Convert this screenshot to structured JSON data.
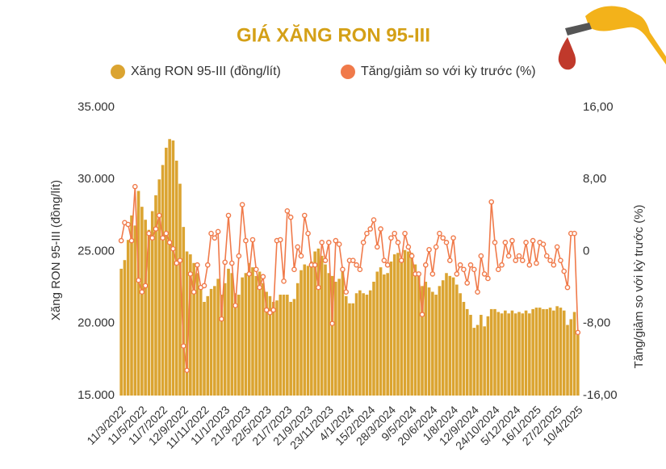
{
  "chart_data": {
    "type": "bar-line",
    "title": "GIÁ XĂNG RON 95-III",
    "y_label": "Xăng RON 95-III (đồng/lít)",
    "y2_label": "Tăng/giảm so với kỳ trước (%)",
    "categories": [
      "11/3/2022",
      null,
      null,
      null,
      null,
      null,
      "11/5/2022",
      null,
      null,
      null,
      null,
      null,
      "11/7/2022",
      null,
      null,
      null,
      null,
      null,
      "12/9/2022",
      null,
      null,
      null,
      null,
      null,
      "11/11/2022",
      null,
      null,
      null,
      null,
      null,
      "11/1/2023",
      null,
      null,
      null,
      null,
      null,
      "21/3/2023",
      null,
      null,
      null,
      null,
      null,
      "22/5/2023",
      null,
      null,
      null,
      null,
      null,
      "21/7/2023",
      null,
      null,
      null,
      null,
      null,
      "21/9/2023",
      null,
      null,
      null,
      null,
      null,
      "23/11/2023",
      null,
      null,
      null,
      null,
      null,
      "4/1/2024",
      null,
      null,
      null,
      null,
      null,
      "15/2/2024",
      null,
      null,
      null,
      null,
      null,
      "28/3/2024",
      null,
      null,
      null,
      null,
      null,
      "9/5/2024",
      null,
      null,
      null,
      null,
      null,
      "20/6/2024",
      null,
      null,
      null,
      null,
      null,
      "1/8/2024",
      null,
      null,
      null,
      null,
      null,
      "12/9/2024",
      null,
      null,
      null,
      null,
      null,
      "24/10/2024",
      null,
      null,
      null,
      null,
      null,
      "5/12/2024",
      null,
      null,
      null,
      null,
      null,
      "16/1/2025",
      null,
      null,
      null,
      null,
      null,
      "27/2/2025",
      null,
      null,
      null,
      null,
      null,
      "10/4/2025"
    ],
    "series": [
      {
        "name": "Xăng RON 95-III (đồng/lít)",
        "type": "bar",
        "color": "#dba431",
        "values": [
          23800,
          24400,
          25800,
          27500,
          26800,
          29200,
          28100,
          27200,
          26500,
          27800,
          28900,
          30000,
          31000,
          32200,
          32800,
          32700,
          31300,
          29700,
          26700,
          25000,
          24800,
          24200,
          23500,
          22500,
          21500,
          21900,
          22400,
          22600,
          23100,
          22000,
          22800,
          23800,
          23500,
          22100,
          22000,
          23200,
          23500,
          24200,
          23900,
          23300,
          23600,
          22800,
          22200,
          21900,
          21500,
          21600,
          22000,
          22000,
          22000,
          21500,
          21700,
          22800,
          23700,
          24100,
          24000,
          24300,
          25000,
          25200,
          24700,
          24100,
          23500,
          23300,
          22900,
          23100,
          23600,
          21900,
          21400,
          21400,
          22100,
          22300,
          22100,
          22000,
          22300,
          22900,
          23600,
          23900,
          23400,
          23500,
          24300,
          24800,
          24900,
          24500,
          25100,
          25000,
          24900,
          24100,
          23500,
          22600,
          22900,
          22500,
          22200,
          22000,
          22600,
          23000,
          23500,
          23300,
          23200,
          22700,
          22100,
          21500,
          21000,
          20600,
          19700,
          19900,
          20600,
          19800,
          20500,
          21000,
          21000,
          20800,
          20700,
          20900,
          20700,
          20900,
          20700,
          20800,
          20700,
          20900,
          20700,
          21000,
          21100,
          21100,
          21000,
          21000,
          21100,
          20900,
          21200,
          21100,
          20900,
          19900,
          20300,
          20800,
          19200
        ]
      },
      {
        "name": "Tăng/giảm so với kỳ trước (%)",
        "type": "line",
        "axis": "y2",
        "color": "#f07a4a",
        "values": [
          1.2,
          3.2,
          3.0,
          1.2,
          7.2,
          -3.2,
          -4.5,
          -3.8,
          2.0,
          1.5,
          2.5,
          4.0,
          1.5,
          2.0,
          1.0,
          0.3,
          -1.3,
          -1.0,
          -10.5,
          -13.2,
          -2.5,
          -4.5,
          -1.5,
          -4.0,
          -3.8,
          -1.5,
          2.0,
          1.5,
          2.2,
          -7.5,
          -1.2,
          4.0,
          -1.3,
          -6.0,
          -0.5,
          5.2,
          1.2,
          -2.5,
          1.3,
          -2.0,
          -4.0,
          -2.8,
          -6.5,
          -6.8,
          -6.5,
          1.2,
          1.3,
          -3.3,
          4.5,
          3.8,
          -2.0,
          0.5,
          -0.5,
          4.0,
          2.0,
          -1.5,
          -1.5,
          -4.0,
          1.0,
          -1.0,
          1.0,
          -8.0,
          1.2,
          0.8,
          -2.0,
          -4.5,
          -1.0,
          -1.0,
          -1.5,
          -2.0,
          1.0,
          2.0,
          2.5,
          3.5,
          0.5,
          2.5,
          -1.0,
          -1.5,
          1.5,
          2.0,
          1.0,
          -1.0,
          2.0,
          0.5,
          -0.5,
          -2.5,
          -2.5,
          -7.0,
          -1.5,
          0.2,
          -2.5,
          0.5,
          2.0,
          1.5,
          1.0,
          -1.0,
          1.5,
          -2.5,
          -1.5,
          -2.0,
          -3.5,
          -1.5,
          -2.0,
          -4.5,
          -0.5,
          -2.5,
          -3.0,
          5.5,
          1.0,
          -2.0,
          -1.5,
          1.0,
          -0.5,
          1.2,
          -1.0,
          -0.5,
          -1.0,
          1.0,
          -1.5,
          1.2,
          -1.3,
          1.0,
          0.8,
          -0.5,
          -1.0,
          -1.5,
          0.5,
          -1.0,
          -2.2,
          -4.0,
          2.0,
          2.0,
          -9.0
        ]
      }
    ],
    "ylim": [
      15000,
      35000
    ],
    "yticks": [
      {
        "value": 15000,
        "label": "15.000"
      },
      {
        "value": 20000,
        "label": "20.000"
      },
      {
        "value": 25000,
        "label": "25.000"
      },
      {
        "value": 30000,
        "label": "30.000"
      },
      {
        "value": 35000,
        "label": "35.000"
      }
    ],
    "y2lim": [
      -16,
      16
    ],
    "y2ticks": [
      {
        "value": -16,
        "label": "-16,00"
      },
      {
        "value": -8,
        "label": "-8,00"
      },
      {
        "value": 0,
        "label": "0"
      },
      {
        "value": 8,
        "label": "8,00"
      },
      {
        "value": 16,
        "label": "16,00"
      }
    ]
  }
}
